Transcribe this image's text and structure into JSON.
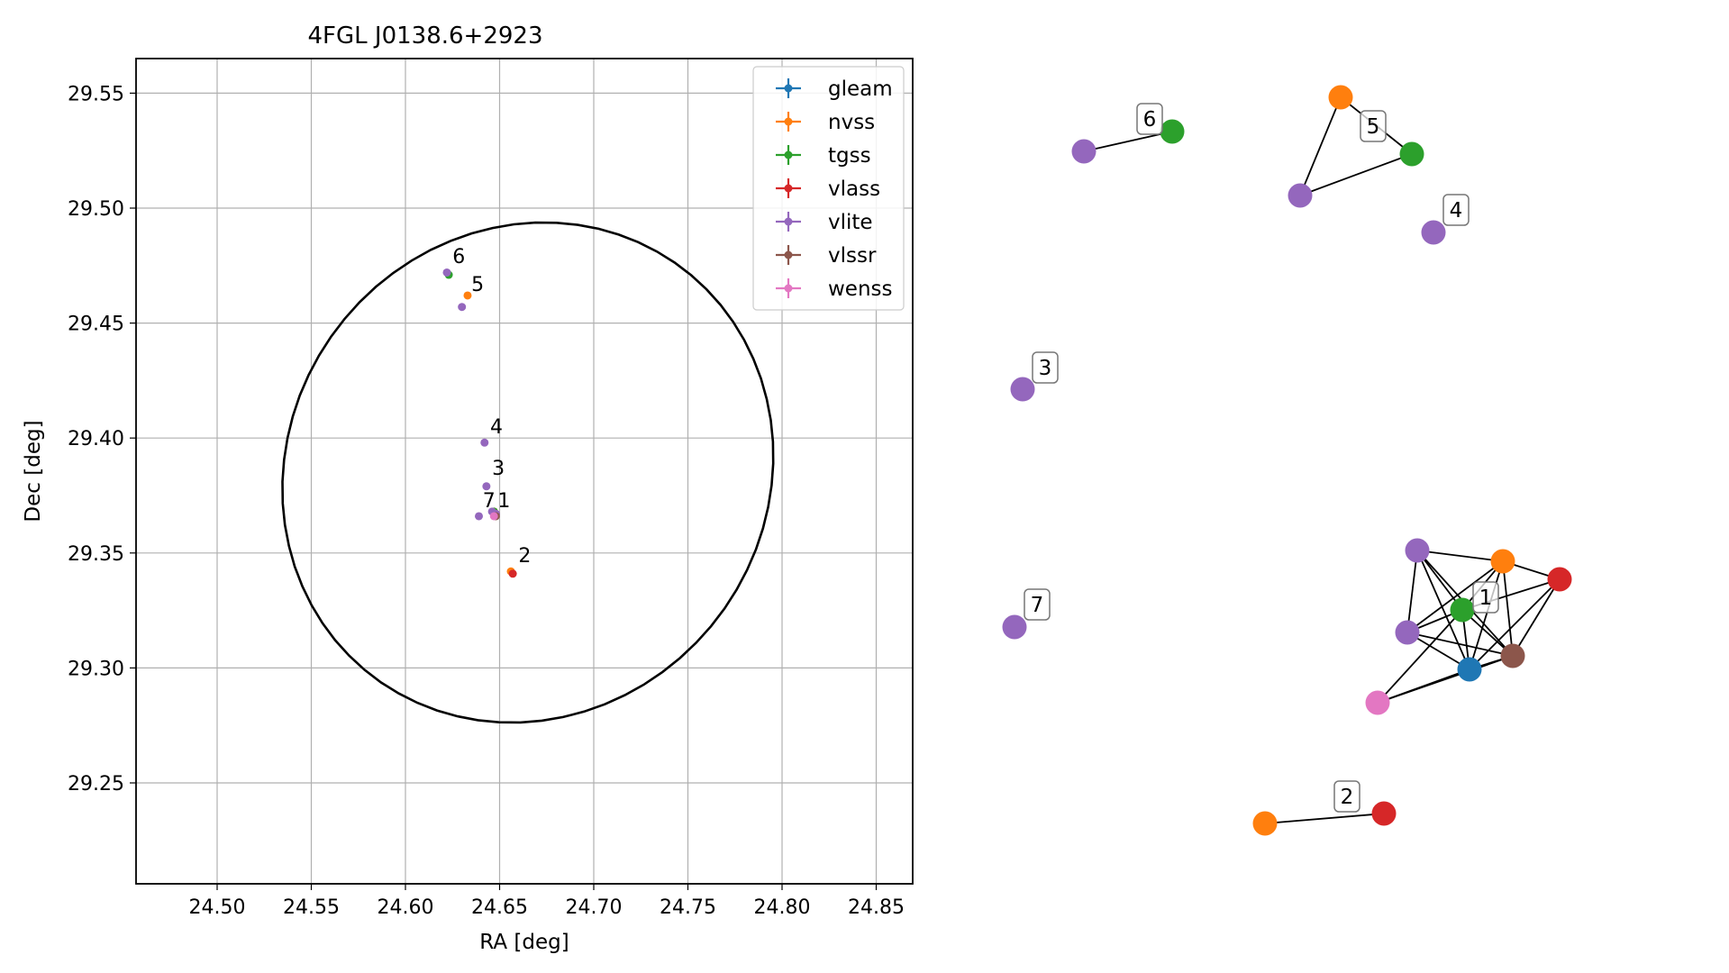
{
  "chart_data": [
    {
      "type": "scatter",
      "title": "4FGL J0138.6+2923",
      "xlabel": "RA [deg]",
      "ylabel": "Dec [deg]",
      "xlim": [
        24.457,
        24.87
      ],
      "ylim": [
        29.205,
        29.565
      ],
      "xticks": [
        24.5,
        24.55,
        24.6,
        24.65,
        24.7,
        24.75,
        24.8,
        24.85
      ],
      "xtick_labels": [
        "24.50",
        "24.55",
        "24.60",
        "24.65",
        "24.70",
        "24.75",
        "24.80",
        "24.85"
      ],
      "yticks": [
        29.25,
        29.3,
        29.35,
        29.4,
        29.45,
        29.5,
        29.55
      ],
      "ytick_labels": [
        "29.25",
        "29.30",
        "29.35",
        "29.40",
        "29.45",
        "29.50",
        "29.55"
      ],
      "grid": true,
      "legend_position": "upper right",
      "ellipse": {
        "center": [
          24.665,
          29.385
        ],
        "semi_axis_ra": 0.131,
        "semi_axis_dec": 0.108,
        "angle_deg": 10,
        "color": "#000000"
      },
      "series": [
        {
          "name": "gleam",
          "color": "#1f77b4",
          "points": [
            [
              24.648,
              29.367
            ]
          ]
        },
        {
          "name": "nvss",
          "color": "#ff7f0e",
          "points": [
            [
              24.633,
              29.462
            ],
            [
              24.647,
              29.368
            ],
            [
              24.656,
              29.342
            ]
          ]
        },
        {
          "name": "tgss",
          "color": "#2ca02c",
          "points": [
            [
              24.623,
              29.471
            ],
            [
              24.647,
              29.368
            ]
          ]
        },
        {
          "name": "vlass",
          "color": "#d62728",
          "points": [
            [
              24.648,
              29.367
            ],
            [
              24.657,
              29.341
            ]
          ]
        },
        {
          "name": "vlite",
          "color": "#9467bd",
          "points": [
            [
              24.622,
              29.472
            ],
            [
              24.63,
              29.457
            ],
            [
              24.642,
              29.398
            ],
            [
              24.643,
              29.379
            ],
            [
              24.646,
              29.368
            ],
            [
              24.639,
              29.366
            ],
            [
              24.648,
              29.367
            ]
          ]
        },
        {
          "name": "vlssr",
          "color": "#8c564b",
          "points": [
            [
              24.648,
              29.366
            ]
          ]
        },
        {
          "name": "wenss",
          "color": "#e377c2",
          "points": [
            [
              24.647,
              29.366
            ]
          ]
        }
      ],
      "group_labels": [
        {
          "text": "6",
          "x": 24.625,
          "y": 29.476
        },
        {
          "text": "5",
          "x": 24.635,
          "y": 29.464
        },
        {
          "text": "4",
          "x": 24.645,
          "y": 29.402
        },
        {
          "text": "3",
          "x": 24.646,
          "y": 29.384
        },
        {
          "text": "7",
          "x": 24.641,
          "y": 29.37
        },
        {
          "text": "1",
          "x": 24.649,
          "y": 29.37
        },
        {
          "text": "2",
          "x": 24.66,
          "y": 29.346
        }
      ]
    },
    {
      "type": "network",
      "nodes": [
        {
          "id": "g6a",
          "color": "#9467bd"
        },
        {
          "id": "g6b",
          "color": "#2ca02c"
        },
        {
          "id": "g5a",
          "color": "#ff7f0e"
        },
        {
          "id": "g5b",
          "color": "#2ca02c"
        },
        {
          "id": "g5c",
          "color": "#9467bd"
        },
        {
          "id": "g4",
          "color": "#9467bd"
        },
        {
          "id": "g3",
          "color": "#9467bd"
        },
        {
          "id": "g7",
          "color": "#9467bd"
        },
        {
          "id": "g1vlite1",
          "color": "#9467bd"
        },
        {
          "id": "g1nvss",
          "color": "#ff7f0e"
        },
        {
          "id": "g1vlass",
          "color": "#d62728"
        },
        {
          "id": "g1tgss",
          "color": "#2ca02c"
        },
        {
          "id": "g1vlite2",
          "color": "#9467bd"
        },
        {
          "id": "g1vlssr",
          "color": "#8c564b"
        },
        {
          "id": "g1gleam",
          "color": "#1f77b4"
        },
        {
          "id": "g1wenss",
          "color": "#e377c2"
        },
        {
          "id": "g2a",
          "color": "#ff7f0e"
        },
        {
          "id": "g2b",
          "color": "#d62728"
        }
      ],
      "edges": [
        [
          "g6a",
          "g6b"
        ],
        [
          "g5a",
          "g5b"
        ],
        [
          "g5a",
          "g5c"
        ],
        [
          "g5b",
          "g5c"
        ],
        [
          "g2a",
          "g2b"
        ],
        [
          "g1vlite1",
          "g1nvss"
        ],
        [
          "g1vlite1",
          "g1tgss"
        ],
        [
          "g1vlite1",
          "g1vlite2"
        ],
        [
          "g1vlite1",
          "g1vlssr"
        ],
        [
          "g1vlite1",
          "g1gleam"
        ],
        [
          "g1nvss",
          "g1vlass"
        ],
        [
          "g1nvss",
          "g1tgss"
        ],
        [
          "g1nvss",
          "g1vlite2"
        ],
        [
          "g1nvss",
          "g1vlssr"
        ],
        [
          "g1nvss",
          "g1gleam"
        ],
        [
          "g1vlass",
          "g1vlssr"
        ],
        [
          "g1vlass",
          "g1gleam"
        ],
        [
          "g1vlass",
          "g1tgss"
        ],
        [
          "g1tgss",
          "g1vlite2"
        ],
        [
          "g1tgss",
          "g1vlssr"
        ],
        [
          "g1tgss",
          "g1gleam"
        ],
        [
          "g1tgss",
          "g1wenss"
        ],
        [
          "g1vlite2",
          "g1vlssr"
        ],
        [
          "g1vlite2",
          "g1gleam"
        ],
        [
          "g1vlssr",
          "g1gleam"
        ],
        [
          "g1vlssr",
          "g1wenss"
        ],
        [
          "g1gleam",
          "g1wenss"
        ]
      ],
      "labels": [
        {
          "text": "6",
          "group": "g6b"
        },
        {
          "text": "5",
          "group": "g5b"
        },
        {
          "text": "4",
          "group": "g4"
        },
        {
          "text": "3",
          "group": "g3"
        },
        {
          "text": "7",
          "group": "g7"
        },
        {
          "text": "1",
          "group": "g1tgss"
        },
        {
          "text": "2",
          "group": "g2b"
        }
      ]
    }
  ]
}
